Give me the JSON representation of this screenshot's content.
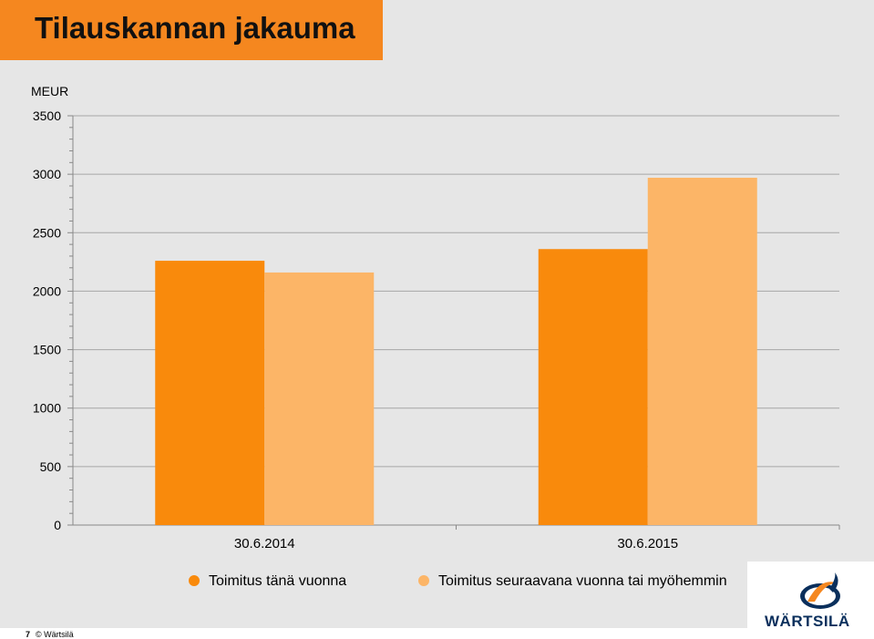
{
  "slide": {
    "title": "Tilauskannan jakauma",
    "footer_page": "7",
    "footer_text": "© Wärtsilä",
    "logo_text": "WÄRTSILÄ"
  },
  "colors": {
    "title_bar": "#f5871f",
    "series_1": "#f98a0c",
    "series_2": "#fcb567",
    "plot_bg": "#e6e6e6",
    "grid": "#a6a6a6"
  },
  "chart_data": {
    "type": "bar",
    "ylabel": "MEUR",
    "ylim": [
      0,
      3500
    ],
    "yticks": [
      "0",
      "500",
      "1000",
      "1500",
      "2000",
      "2500",
      "3000",
      "3500"
    ],
    "categories": [
      "30.6.2014",
      "30.6.2015"
    ],
    "series": [
      {
        "name": "Toimitus tänä vuonna",
        "values": [
          2260,
          2360
        ]
      },
      {
        "name": "Toimitus seuraavana vuonna tai myöhemmin",
        "values": [
          2160,
          2970
        ]
      }
    ],
    "grid": true,
    "legend_position": "bottom"
  }
}
